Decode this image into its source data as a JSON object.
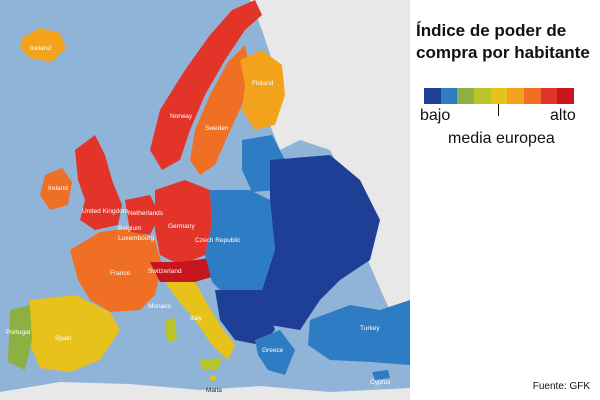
{
  "legend": {
    "title_line1": "Índice de poder de",
    "title_line2": "compra por habitante",
    "low_label": "bajo",
    "high_label": "alto",
    "middle_label": "media europea",
    "scale_colors": [
      "#1f3f97",
      "#2e7dc4",
      "#8db043",
      "#b8c42a",
      "#e7c21a",
      "#f2a31b",
      "#ef6f24",
      "#e3342a",
      "#c4161c"
    ]
  },
  "source": "Fuente: GFK",
  "sea_color": "#8fb4d8",
  "non_eu_land_color": "#e8e8e8",
  "countries": [
    {
      "label": "Iceland",
      "index": 0.75
    },
    {
      "label": "Norway",
      "index": 0.95
    },
    {
      "label": "Sweden",
      "index": 0.85
    },
    {
      "label": "Finland",
      "index": 0.8
    },
    {
      "label": "Ireland",
      "index": 0.8
    },
    {
      "label": "United Kingdom",
      "index": 0.85
    },
    {
      "label": "Netherlands",
      "index": 0.9
    },
    {
      "label": "Belgium",
      "index": 0.85
    },
    {
      "label": "Luxembourg",
      "index": 1.0
    },
    {
      "label": "Germany",
      "index": 0.9
    },
    {
      "label": "Czech Republic",
      "index": 0.3
    },
    {
      "label": "France",
      "index": 0.8
    },
    {
      "label": "Switzerland",
      "index": 0.95
    },
    {
      "label": "Monaco",
      "index": 1.0
    },
    {
      "label": "Italy",
      "index": 0.65
    },
    {
      "label": "Portugal",
      "index": 0.25
    },
    {
      "label": "Spain",
      "index": 0.45
    },
    {
      "label": "Greece",
      "index": 0.3
    },
    {
      "label": "Turkey",
      "index": 0.1
    },
    {
      "label": "Cyprus",
      "index": 0.4
    },
    {
      "label": "Malta",
      "index": 0.5
    }
  ]
}
